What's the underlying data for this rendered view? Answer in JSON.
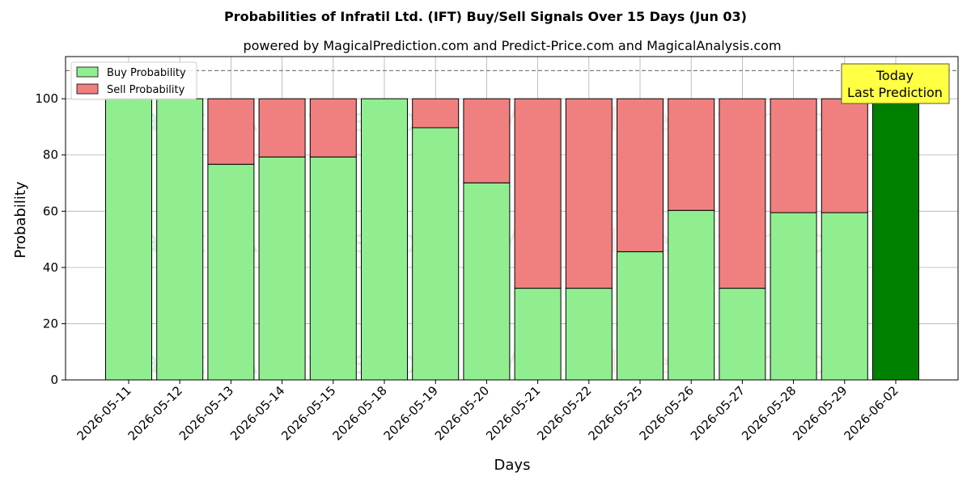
{
  "chart_data": {
    "type": "bar",
    "stacked": true,
    "title": "Probabilities of Infratil Ltd. (IFT) Buy/Sell Signals Over 15 Days (Jun 03)",
    "subtitle": "powered by MagicalPrediction.com and Predict-Price.com and MagicalAnalysis.com",
    "xlabel": "Days",
    "ylabel": "Probability",
    "ylim": [
      0,
      115
    ],
    "yticks": [
      0,
      20,
      40,
      60,
      80,
      100
    ],
    "reference_line": 110,
    "grid": true,
    "legend_position": "top-left",
    "categories": [
      "2026-05-11",
      "2026-05-12",
      "2026-05-13",
      "2026-05-14",
      "2026-05-15",
      "2026-05-18",
      "2026-05-19",
      "2026-05-20",
      "2026-05-21",
      "2026-05-22",
      "2026-05-25",
      "2026-05-26",
      "2026-05-27",
      "2026-05-28",
      "2026-05-29",
      "2026-06-02"
    ],
    "series": [
      {
        "name": "Buy Probability",
        "color": "#90EE90",
        "values": [
          100,
          100,
          76.7,
          79.3,
          79.3,
          100,
          89.7,
          70.1,
          32.6,
          32.6,
          45.6,
          60.3,
          32.6,
          59.5,
          59.5,
          100
        ]
      },
      {
        "name": "Sell Probability",
        "color": "#F08080",
        "values": [
          0,
          0,
          23.3,
          20.7,
          20.7,
          0,
          10.3,
          29.9,
          67.4,
          67.4,
          54.4,
          39.7,
          67.4,
          40.5,
          40.5,
          0
        ]
      }
    ],
    "highlight": {
      "index": 15,
      "color": "#008000"
    },
    "annotation": {
      "lines": [
        "Today",
        "Last Prediction"
      ],
      "background": "#FFFF44"
    },
    "watermarks": [
      "MagicalAnalysis.com",
      "MagicalPrediction.com"
    ]
  }
}
